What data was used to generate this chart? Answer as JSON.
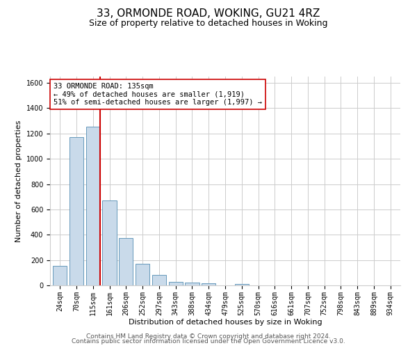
{
  "title": "33, ORMONDE ROAD, WOKING, GU21 4RZ",
  "subtitle": "Size of property relative to detached houses in Woking",
  "xlabel": "Distribution of detached houses by size in Woking",
  "ylabel": "Number of detached properties",
  "bar_color": "#c9daea",
  "bar_edge_color": "#6699bb",
  "bar_categories": [
    "24sqm",
    "70sqm",
    "115sqm",
    "161sqm",
    "206sqm",
    "252sqm",
    "297sqm",
    "343sqm",
    "388sqm",
    "434sqm",
    "479sqm",
    "525sqm",
    "570sqm",
    "616sqm",
    "661sqm",
    "707sqm",
    "752sqm",
    "798sqm",
    "843sqm",
    "889sqm",
    "934sqm"
  ],
  "bar_values": [
    155,
    1170,
    1255,
    670,
    375,
    170,
    80,
    30,
    20,
    17,
    0,
    13,
    0,
    0,
    0,
    0,
    0,
    0,
    0,
    0,
    0
  ],
  "ylim": [
    0,
    1650
  ],
  "yticks": [
    0,
    200,
    400,
    600,
    800,
    1000,
    1200,
    1400,
    1600
  ],
  "property_line_color": "#cc0000",
  "annotation_text": "33 ORMONDE ROAD: 135sqm\n← 49% of detached houses are smaller (1,919)\n51% of semi-detached houses are larger (1,997) →",
  "annotation_box_color": "#ffffff",
  "annotation_box_edge": "#cc0000",
  "footer_line1": "Contains HM Land Registry data © Crown copyright and database right 2024.",
  "footer_line2": "Contains public sector information licensed under the Open Government Licence v3.0.",
  "background_color": "#ffffff",
  "grid_color": "#cccccc",
  "title_fontsize": 11,
  "subtitle_fontsize": 9,
  "axis_label_fontsize": 8,
  "tick_fontsize": 7,
  "annotation_fontsize": 7.5,
  "footer_fontsize": 6.5
}
